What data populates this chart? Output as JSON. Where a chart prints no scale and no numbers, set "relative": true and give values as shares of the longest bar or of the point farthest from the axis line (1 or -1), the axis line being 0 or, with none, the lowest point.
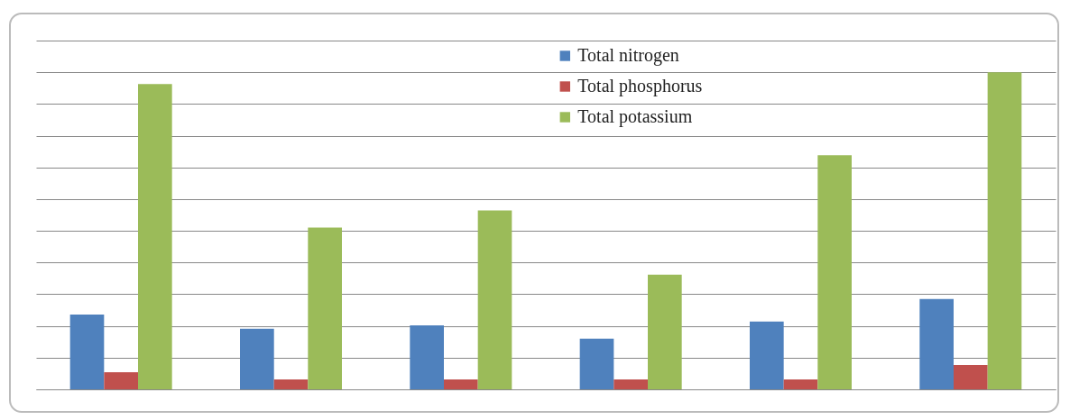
{
  "chart_data": {
    "type": "bar",
    "relative": true,
    "grid": "y",
    "legend": "top",
    "categories": [
      null,
      null,
      null,
      null,
      null,
      null
    ],
    "series": [
      {
        "name": "Total nitrogen",
        "color": "#4f81bd",
        "values": [
          0.236,
          0.191,
          0.202,
          0.16,
          0.214,
          0.285
        ]
      },
      {
        "name": "Total phosphorus",
        "color": "#c0504d",
        "values": [
          0.054,
          0.031,
          0.031,
          0.031,
          0.031,
          0.077
        ]
      },
      {
        "name": "Total potassium",
        "color": "#9bbb59",
        "values": [
          0.963,
          0.51,
          0.564,
          0.362,
          0.738,
          1
        ]
      }
    ]
  }
}
